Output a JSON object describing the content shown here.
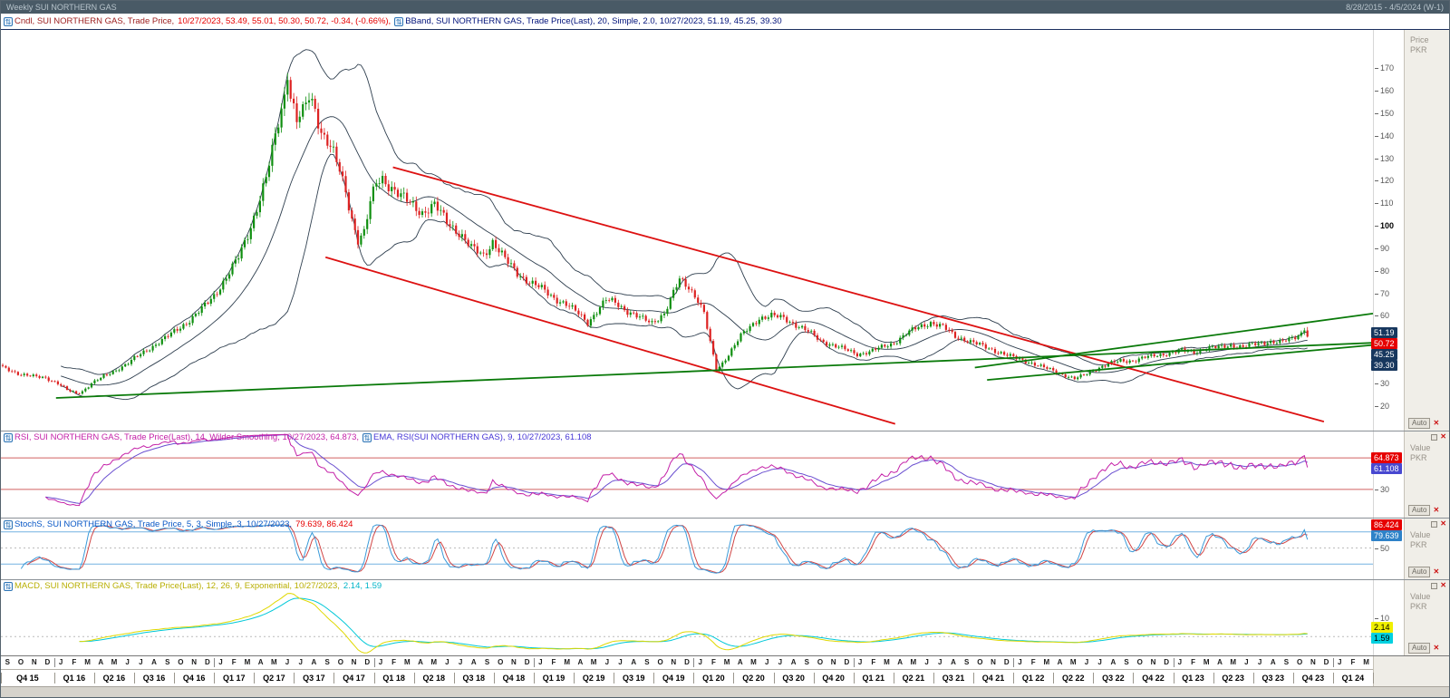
{
  "window": {
    "title": "Weekly SUI NORTHERN GAS",
    "date_range": "8/28/2015 - 4/5/2024 (W-1)"
  },
  "labels": {
    "auto": "Auto",
    "close": "✕"
  },
  "colors": {
    "candle_up": "#0f8f0f",
    "candle_down": "#dd2222",
    "bband": "#2f3f4f",
    "trend_red": "#dd1111",
    "trend_green": "#0a7a0a",
    "rsi": "#c421a8",
    "rsi_ema": "#6a4fd0",
    "stoch_k": "#3a9ad9",
    "stoch_d": "#d04545",
    "macd": "#e0d800",
    "macd_signal": "#00c8d8",
    "header_underline": "#1b2f5e"
  },
  "panels": {
    "main": {
      "legend": [
        {
          "icon": true,
          "text": "Cndl, SUI NORTHERN GAS, Trade Price,",
          "color": "#9b1c1c"
        },
        {
          "text": "10/27/2023,  53.49, 55.01, 50.30, 50.72,  -0.34, (-0.66%),",
          "color": "#e60000"
        },
        {
          "icon": true,
          "text": "BBand, SUI NORTHERN GAS, Trade Price(Last),  20, Simple, 2.0,  10/27/2023,  51.19, 45.25, 39.30",
          "color": "#00127a"
        }
      ],
      "axis_title": [
        "Price",
        "PKR"
      ],
      "badges": [
        {
          "label": "51.19",
          "value": 51.19,
          "bg": "#17375e",
          "fg": "#ffffff"
        },
        {
          "label": "50.72",
          "value": 50.72,
          "bg": "#e60000",
          "fg": "#ffffff"
        },
        {
          "label": "45.25",
          "value": 45.25,
          "bg": "#17375e",
          "fg": "#ffffff"
        },
        {
          "label": "39.30",
          "value": 39.3,
          "bg": "#17375e",
          "fg": "#ffffff"
        }
      ]
    },
    "rsi": {
      "legend": [
        {
          "icon": true,
          "text": "RSI, SUI NORTHERN GAS, Trade Price(Last),  14, Wilder Smoothing,  10/27/2023, 64.873,",
          "color": "#c421a8"
        },
        {
          "icon": true,
          "text": "EMA, RSI(SUI NORTHERN GAS),  9,  10/27/2023, 61.108",
          "color": "#4636d6"
        }
      ],
      "axis_title": [
        "Value",
        "PKR"
      ],
      "ticks": [
        30
      ],
      "badges": [
        {
          "label": "64.873",
          "value": 64.873,
          "bg": "#e60000",
          "fg": "#ffffff"
        },
        {
          "label": "61.108",
          "value": 61.108,
          "bg": "#4848d0",
          "fg": "#ffffff"
        }
      ]
    },
    "stoch": {
      "legend": [
        {
          "icon": true,
          "text": "StochS, SUI NORTHERN GAS, Trade Price,  5, 3, Simple, 3,  10/27/2023,",
          "color": "#0a58c6"
        },
        {
          "text": "79.639, 86.424",
          "color": "#e60000"
        }
      ],
      "axis_title": [
        "Value",
        "PKR"
      ],
      "ticks": [
        50
      ],
      "badges": [
        {
          "label": "86.424",
          "value": 86.424,
          "bg": "#e60000",
          "fg": "#ffffff"
        },
        {
          "label": "79.639",
          "value": 79.639,
          "bg": "#2e82c8",
          "fg": "#ffffff"
        }
      ]
    },
    "macd": {
      "legend": [
        {
          "icon": true,
          "text": "MACD, SUI NORTHERN GAS, Trade Price(Last),  12, 26, 9, Exponential,  10/27/2023,",
          "color": "#b8ae00"
        },
        {
          "text": "2.14, 1.59",
          "color": "#00b4c8"
        }
      ],
      "axis_title": [
        "Value",
        "PKR"
      ],
      "ticks": [
        10
      ],
      "badges": [
        {
          "label": "2.14",
          "value": 2.14,
          "bg": "#f0f000",
          "fg": "#000000"
        },
        {
          "label": "1.59",
          "value": 1.59,
          "bg": "#00d0e0",
          "fg": "#000000"
        }
      ]
    }
  },
  "xaxis": {
    "months": "SONDJFMAMJJASONDJFMAMJJASONDJFMAMJJASONDJFMAMJJASONDJFMAMJJASONDJFMAMJJASONDJFMAMJJASONDJFMAMJJASONDJFM",
    "quarters": [
      "Q4 15",
      "Q1 16",
      "Q2 16",
      "Q3 16",
      "Q4 16",
      "Q1 17",
      "Q2 17",
      "Q3 17",
      "Q4 17",
      "Q1 18",
      "Q2 18",
      "Q3 18",
      "Q4 18",
      "Q1 19",
      "Q2 19",
      "Q3 19",
      "Q4 19",
      "Q1 20",
      "Q2 20",
      "Q3 20",
      "Q4 20",
      "Q1 21",
      "Q2 21",
      "Q3 21",
      "Q4 21",
      "Q1 22",
      "Q2 22",
      "Q3 22",
      "Q4 22",
      "Q1 23",
      "Q2 23",
      "Q3 23",
      "Q4 23",
      "Q1 24"
    ]
  },
  "chart_data": {
    "type": "candlestick",
    "title": "Weekly SUI NORTHERN GAS",
    "date_start": "8/28/2015",
    "date_end": "4/5/2024",
    "bars": 427,
    "axis_weeks": 448,
    "price_axis": {
      "min": 9,
      "max": 187,
      "ticks": [
        170,
        160,
        150,
        140,
        130,
        120,
        110,
        100,
        90,
        80,
        70,
        60,
        30,
        20
      ],
      "bold": 100
    },
    "macd_axis": {
      "min": -10,
      "max": 30
    },
    "last_bar": {
      "date": "10/27/2023",
      "open": 53.49,
      "high": 55.01,
      "low": 50.3,
      "close": 50.72,
      "change": -0.34,
      "change_pct": "-0.66%"
    },
    "close_anchors": [
      [
        0,
        37
      ],
      [
        3,
        35.5
      ],
      [
        6,
        34
      ],
      [
        10,
        33
      ],
      [
        14,
        32.5
      ],
      [
        18,
        30
      ],
      [
        21,
        27
      ],
      [
        24,
        25.5
      ],
      [
        26,
        26.5
      ],
      [
        29,
        30
      ],
      [
        33,
        33
      ],
      [
        37,
        36
      ],
      [
        41,
        39
      ],
      [
        45,
        43
      ],
      [
        49,
        46.5
      ],
      [
        53,
        50
      ],
      [
        57,
        54
      ],
      [
        61,
        58
      ],
      [
        65,
        63
      ],
      [
        69,
        69
      ],
      [
        73,
        77
      ],
      [
        77,
        86
      ],
      [
        80,
        96
      ],
      [
        83,
        108
      ],
      [
        86,
        121
      ],
      [
        88,
        133
      ],
      [
        90,
        146
      ],
      [
        92,
        158
      ],
      [
        93,
        169
      ],
      [
        94,
        158
      ],
      [
        96,
        147
      ],
      [
        98,
        150
      ],
      [
        100,
        157
      ],
      [
        102,
        152
      ],
      [
        104,
        142
      ],
      [
        106,
        138
      ],
      [
        108,
        132
      ],
      [
        110,
        124
      ],
      [
        112,
        115
      ],
      [
        114,
        103
      ],
      [
        116,
        94
      ],
      [
        118,
        97
      ],
      [
        120,
        110
      ],
      [
        122,
        119
      ],
      [
        124,
        121
      ],
      [
        127,
        117
      ],
      [
        130,
        113
      ],
      [
        133,
        110
      ],
      [
        137,
        106
      ],
      [
        141,
        109
      ],
      [
        145,
        102
      ],
      [
        149,
        97
      ],
      [
        153,
        90
      ],
      [
        157,
        87
      ],
      [
        160,
        93
      ],
      [
        164,
        85
      ],
      [
        168,
        79
      ],
      [
        172,
        75
      ],
      [
        176,
        72
      ],
      [
        180,
        68
      ],
      [
        184,
        65
      ],
      [
        188,
        61
      ],
      [
        191,
        57
      ],
      [
        194,
        62
      ],
      [
        197,
        67
      ],
      [
        200,
        66
      ],
      [
        204,
        62
      ],
      [
        208,
        59
      ],
      [
        212,
        57
      ],
      [
        216,
        61
      ],
      [
        219,
        70
      ],
      [
        221,
        76
      ],
      [
        224,
        73
      ],
      [
        227,
        67
      ],
      [
        229,
        61
      ],
      [
        231,
        48
      ],
      [
        233,
        36
      ],
      [
        235,
        39
      ],
      [
        238,
        45
      ],
      [
        241,
        51
      ],
      [
        244,
        55
      ],
      [
        247,
        59
      ],
      [
        251,
        60
      ],
      [
        255,
        59
      ],
      [
        259,
        56
      ],
      [
        263,
        53
      ],
      [
        267,
        49
      ],
      [
        271,
        47
      ],
      [
        275,
        45
      ],
      [
        279,
        43
      ],
      [
        283,
        44
      ],
      [
        287,
        46
      ],
      [
        291,
        48
      ],
      [
        295,
        52
      ],
      [
        299,
        55
      ],
      [
        303,
        57
      ],
      [
        307,
        55
      ],
      [
        311,
        51
      ],
      [
        315,
        49
      ],
      [
        319,
        47
      ],
      [
        323,
        45
      ],
      [
        327,
        43
      ],
      [
        331,
        41
      ],
      [
        335,
        39.5
      ],
      [
        339,
        37.5
      ],
      [
        343,
        35.5
      ],
      [
        347,
        33.5
      ],
      [
        350,
        32
      ],
      [
        353,
        33.5
      ],
      [
        357,
        36.5
      ],
      [
        361,
        38.5
      ],
      [
        365,
        40
      ],
      [
        369,
        40
      ],
      [
        373,
        41.5
      ],
      [
        377,
        42.5
      ],
      [
        381,
        43.5
      ],
      [
        385,
        44.5
      ],
      [
        389,
        44
      ],
      [
        393,
        45.5
      ],
      [
        397,
        46
      ],
      [
        401,
        47
      ],
      [
        405,
        46
      ],
      [
        409,
        47.5
      ],
      [
        413,
        48.5
      ],
      [
        417,
        48
      ],
      [
        420,
        49.5
      ],
      [
        423,
        51.5
      ],
      [
        425,
        53.49
      ],
      [
        426,
        50.72
      ]
    ],
    "overlays": {
      "bband": {
        "period": 20,
        "type": "Simple",
        "mult": 2.0,
        "upper": 51.19,
        "middle": 45.25,
        "lower": 39.3
      }
    },
    "indicators": {
      "rsi": {
        "period": 14,
        "smoothing": "Wilder Smoothing",
        "value": 64.873,
        "ema_period": 9,
        "ema_value": 61.108,
        "levels": [
          70,
          30
        ]
      },
      "stoch": {
        "k": 5,
        "slowing": 3,
        "ma": "Simple",
        "d": 3,
        "k_value": 79.639,
        "d_value": 86.424,
        "levels": [
          80,
          50,
          20
        ]
      },
      "macd": {
        "fast": 12,
        "slow": 26,
        "signal": 9,
        "method": "Exponential",
        "macd_value": 2.14,
        "signal_value": 1.59,
        "levels": [
          0
        ]
      }
    },
    "trend_lines": [
      {
        "name": "down-channel-upper",
        "color": "#dd1111",
        "w": 1.8,
        "p1": [
          128,
          126
        ],
        "p2": [
          432,
          13
        ]
      },
      {
        "name": "down-channel-lower",
        "color": "#dd1111",
        "w": 1.8,
        "p1": [
          106,
          86
        ],
        "p2": [
          292,
          12
        ]
      },
      {
        "name": "long-term-support",
        "color": "#0a7a0a",
        "w": 1.8,
        "p1": [
          18,
          23.5
        ],
        "p2": [
          448,
          48
        ]
      },
      {
        "name": "rising-channel-upper",
        "color": "#0a7a0a",
        "w": 1.8,
        "p1": [
          318,
          37
        ],
        "p2": [
          448,
          61
        ]
      },
      {
        "name": "rising-channel-lower",
        "color": "#0a7a0a",
        "w": 1.8,
        "p1": [
          322,
          31.5
        ],
        "p2": [
          448,
          47
        ]
      }
    ]
  }
}
